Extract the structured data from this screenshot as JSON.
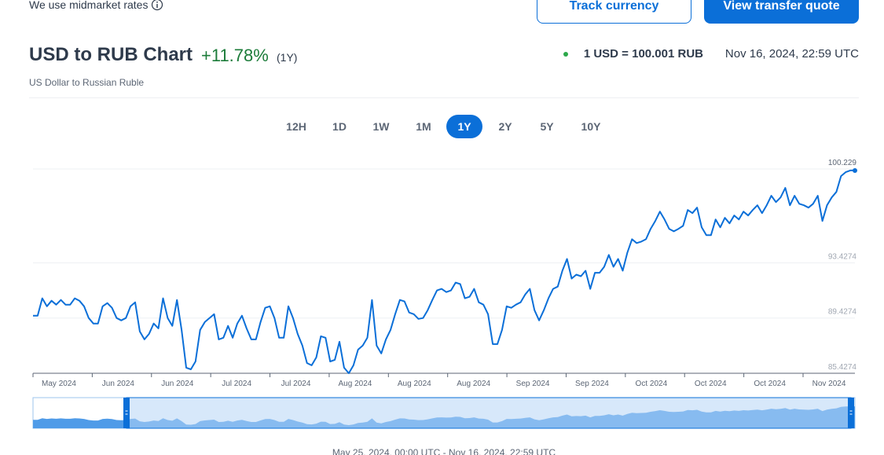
{
  "header": {
    "note": "We use midmarket rates",
    "buttons": [
      "Track currency",
      "View transfer quote"
    ],
    "title": "USD to RUB Chart",
    "change": "+11.78%",
    "change_period": "(1Y)",
    "subtitle": "US Dollar to Russian Ruble",
    "rate": "1 USD = 100.001 RUB",
    "timestamp": "Nov 16, 2024, 22:59 UTC"
  },
  "periods": [
    "12H",
    "1D",
    "1W",
    "1M",
    "1Y",
    "2Y",
    "5Y",
    "10Y"
  ],
  "active_period": 4,
  "chart_data": {
    "type": "line",
    "x_labels": [
      "May 2024",
      "Jun 2024",
      "Jun 2024",
      "Jul 2024",
      "Jul 2024",
      "Aug 2024",
      "Aug 2024",
      "Aug 2024",
      "Sep 2024",
      "Sep 2024",
      "Oct 2024",
      "Oct 2024",
      "Oct 2024",
      "Nov 2024"
    ],
    "color": "#0b6fd8",
    "values": [
      89.6,
      89.6,
      90.86,
      90.28,
      90.68,
      90.4,
      90.74,
      90.4,
      90.4,
      90.86,
      90.68,
      90.28,
      89.43,
      89.03,
      89.03,
      90.28,
      90.51,
      90.17,
      89.43,
      89.26,
      89.43,
      90.28,
      90.57,
      88.46,
      87.88,
      88.28,
      89.03,
      88.68,
      90.86,
      89.43,
      88.86,
      90.74,
      88.57,
      85.83,
      85.71,
      86.28,
      88.57,
      89.14,
      89.43,
      89.71,
      87.88,
      88.0,
      88.86,
      88.0,
      89.03,
      89.6,
      88.68,
      87.88,
      87.88,
      89.14,
      90.17,
      90.28,
      89.43,
      88.0,
      88.0,
      90.28,
      89.43,
      88.28,
      87.43,
      86.17,
      86.0,
      86.57,
      88.11,
      88.0,
      86.28,
      86.4,
      87.71,
      85.83,
      85.43,
      86.0,
      87.14,
      87.43,
      88.0,
      90.74,
      87.43,
      86.86,
      87.88,
      88.57,
      89.71,
      90.74,
      90.63,
      89.83,
      89.71,
      89.37,
      89.43,
      90.0,
      90.74,
      91.43,
      91.54,
      91.31,
      91.43,
      92.0,
      91.89,
      90.86,
      90.97,
      91.54,
      90.57,
      90.4,
      89.71,
      87.54,
      87.54,
      88.57,
      90.28,
      90.17,
      90.4,
      90.57,
      91.14,
      91.54,
      90.0,
      89.26,
      90.0,
      90.86,
      91.54,
      91.71,
      92.86,
      93.71,
      92.29,
      92.57,
      92.46,
      92.86,
      91.54,
      92.71,
      92.71,
      93.14,
      94.0,
      93.14,
      93.71,
      92.86,
      94.17,
      95.14,
      94.86,
      94.97,
      95.14,
      95.89,
      96.46,
      97.14,
      96.57,
      95.89,
      95.71,
      95.89,
      96.11,
      97.26,
      97.03,
      97.43,
      96.0,
      95.43,
      95.43,
      96.57,
      96.0,
      96.69,
      96.29,
      96.86,
      96.57,
      97.14,
      96.86,
      97.26,
      97.6,
      97.03,
      97.6,
      98.29,
      97.83,
      98.17,
      98.86,
      97.6,
      98.29,
      97.71,
      97.6,
      97.43,
      97.71,
      98.29,
      96.46,
      97.6,
      98.17,
      98.57,
      99.71,
      100.0,
      100.12,
      100.12
    ],
    "ylim": [
      85.4274,
      100.8
    ],
    "yticks": [
      85.4274,
      89.4274,
      93.4274,
      100.229
    ],
    "grid": true,
    "range_label": "May 25, 2024, 00:00 UTC - Nov 16, 2024, 22:59 UTC"
  }
}
